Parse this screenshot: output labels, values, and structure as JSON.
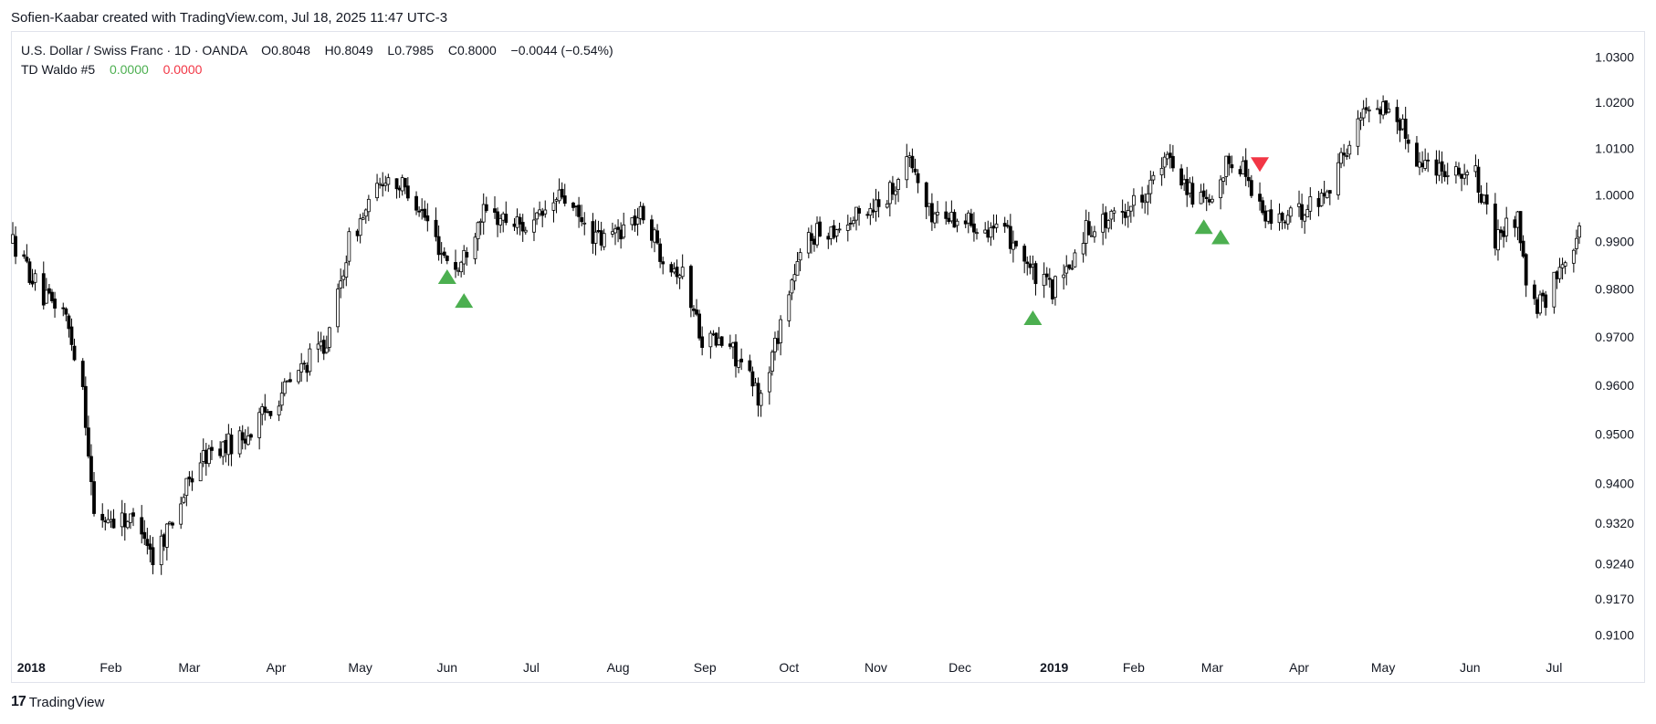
{
  "caption": "Sofien-Kaabar created with TradingView.com, Jul 18, 2025 11:47 UTC-3",
  "legend": {
    "symbol": "U.S. Dollar / Swiss Franc · 1D · OANDA",
    "open_label": "O",
    "open": "0.8048",
    "high_label": "H",
    "high": "0.8049",
    "low_label": "L",
    "low": "0.7985",
    "close_label": "C",
    "close": "0.8000",
    "change": "−0.0044 (−0.54%)",
    "indicator": "TD Waldo #5",
    "indicator_val1": "0.0000",
    "indicator_val2": "0.0000"
  },
  "brand": {
    "logo": "17",
    "name": "TradingView"
  },
  "colors": {
    "candle": "#000000",
    "buy_signal": "#4caf50",
    "sell_signal": "#f23645",
    "border": "#e0e3eb"
  },
  "chart_data": {
    "type": "candlestick",
    "title": "U.S. Dollar / Swiss Franc · 1D · OANDA",
    "y_ticks": [
      "1.0300",
      "1.0200",
      "1.0100",
      "1.0000",
      "0.9900",
      "0.9800",
      "0.9700",
      "0.9600",
      "0.9500",
      "0.9400",
      "0.9320",
      "0.9240",
      "0.9170",
      "0.9100"
    ],
    "x_ticks": [
      {
        "label": "2018",
        "bold": true
      },
      {
        "label": "Feb"
      },
      {
        "label": "Mar"
      },
      {
        "label": "Apr"
      },
      {
        "label": "May"
      },
      {
        "label": "Jun"
      },
      {
        "label": "Jul"
      },
      {
        "label": "Aug"
      },
      {
        "label": "Sep"
      },
      {
        "label": "Oct"
      },
      {
        "label": "Nov"
      },
      {
        "label": "Dec"
      },
      {
        "label": "2019",
        "bold": true
      },
      {
        "label": "Feb"
      },
      {
        "label": "Mar"
      },
      {
        "label": "Apr"
      },
      {
        "label": "May"
      },
      {
        "label": "Jun"
      },
      {
        "label": "Jul"
      }
    ],
    "y_scale": "log",
    "ylim": [
      0.9065,
      1.0345
    ],
    "x_range": [
      "2017-12-28",
      "2019-07-10"
    ],
    "price_path": [
      [
        "2017-12-28",
        0.99
      ],
      [
        "2018-01-08",
        0.978
      ],
      [
        "2018-01-15",
        0.976
      ],
      [
        "2018-01-22",
        0.96
      ],
      [
        "2018-01-26",
        0.933
      ],
      [
        "2018-02-05",
        0.933
      ],
      [
        "2018-02-12",
        0.932
      ],
      [
        "2018-02-16",
        0.925
      ],
      [
        "2018-02-22",
        0.932
      ],
      [
        "2018-03-05",
        0.945
      ],
      [
        "2018-03-22",
        0.95
      ],
      [
        "2018-04-05",
        0.96
      ],
      [
        "2018-04-20",
        0.97
      ],
      [
        "2018-04-27",
        0.99
      ],
      [
        "2018-05-10",
        1.004
      ],
      [
        "2018-05-20",
        1.0
      ],
      [
        "2018-05-30",
        0.988
      ],
      [
        "2018-06-05",
        0.984
      ],
      [
        "2018-06-13",
        0.996
      ],
      [
        "2018-06-20",
        0.995
      ],
      [
        "2018-07-01",
        0.993
      ],
      [
        "2018-07-12",
        1.0
      ],
      [
        "2018-07-20",
        0.993
      ],
      [
        "2018-07-26",
        0.99
      ],
      [
        "2018-08-10",
        0.996
      ],
      [
        "2018-08-16",
        0.988
      ],
      [
        "2018-08-24",
        0.983
      ],
      [
        "2018-08-31",
        0.97
      ],
      [
        "2018-09-10",
        0.968
      ],
      [
        "2018-09-21",
        0.957
      ],
      [
        "2018-10-01",
        0.98
      ],
      [
        "2018-10-08",
        0.991
      ],
      [
        "2018-10-22",
        0.994
      ],
      [
        "2018-11-05",
        1.0
      ],
      [
        "2018-11-13",
        1.008
      ],
      [
        "2018-11-20",
        0.996
      ],
      [
        "2018-12-01",
        0.995
      ],
      [
        "2018-12-12",
        0.993
      ],
      [
        "2018-12-21",
        0.99
      ],
      [
        "2018-12-28",
        0.982
      ],
      [
        "2019-01-03",
        0.98
      ],
      [
        "2019-01-08",
        0.983
      ],
      [
        "2019-01-15",
        0.993
      ],
      [
        "2019-01-25",
        0.995
      ],
      [
        "2019-02-04",
        1.0
      ],
      [
        "2019-02-14",
        1.008
      ],
      [
        "2019-02-22",
        1.0
      ],
      [
        "2019-03-01",
        0.997
      ],
      [
        "2019-03-07",
        1.008
      ],
      [
        "2019-03-12",
        1.006
      ],
      [
        "2019-03-20",
        0.995
      ],
      [
        "2019-03-29",
        0.995
      ],
      [
        "2019-04-10",
        1.0
      ],
      [
        "2019-04-18",
        1.01
      ],
      [
        "2019-04-26",
        1.02
      ],
      [
        "2019-05-05",
        1.018
      ],
      [
        "2019-05-14",
        1.007
      ],
      [
        "2019-05-24",
        1.006
      ],
      [
        "2019-06-03",
        1.004
      ],
      [
        "2019-06-10",
        0.99
      ],
      [
        "2019-06-18",
        0.996
      ],
      [
        "2019-06-22",
        0.976
      ],
      [
        "2019-06-28",
        0.977
      ],
      [
        "2019-07-03",
        0.985
      ],
      [
        "2019-07-10",
        0.992
      ]
    ],
    "signals": [
      {
        "date": "2018-06-01",
        "type": "buy",
        "price": 0.9826
      },
      {
        "date": "2018-06-07",
        "type": "buy",
        "price": 0.9776
      },
      {
        "date": "2018-12-27",
        "type": "buy",
        "price": 0.974
      },
      {
        "date": "2019-02-26",
        "type": "buy",
        "price": 0.9932
      },
      {
        "date": "2019-03-04",
        "type": "buy",
        "price": 0.991
      },
      {
        "date": "2019-03-18",
        "type": "sell",
        "price": 1.0065
      }
    ]
  }
}
